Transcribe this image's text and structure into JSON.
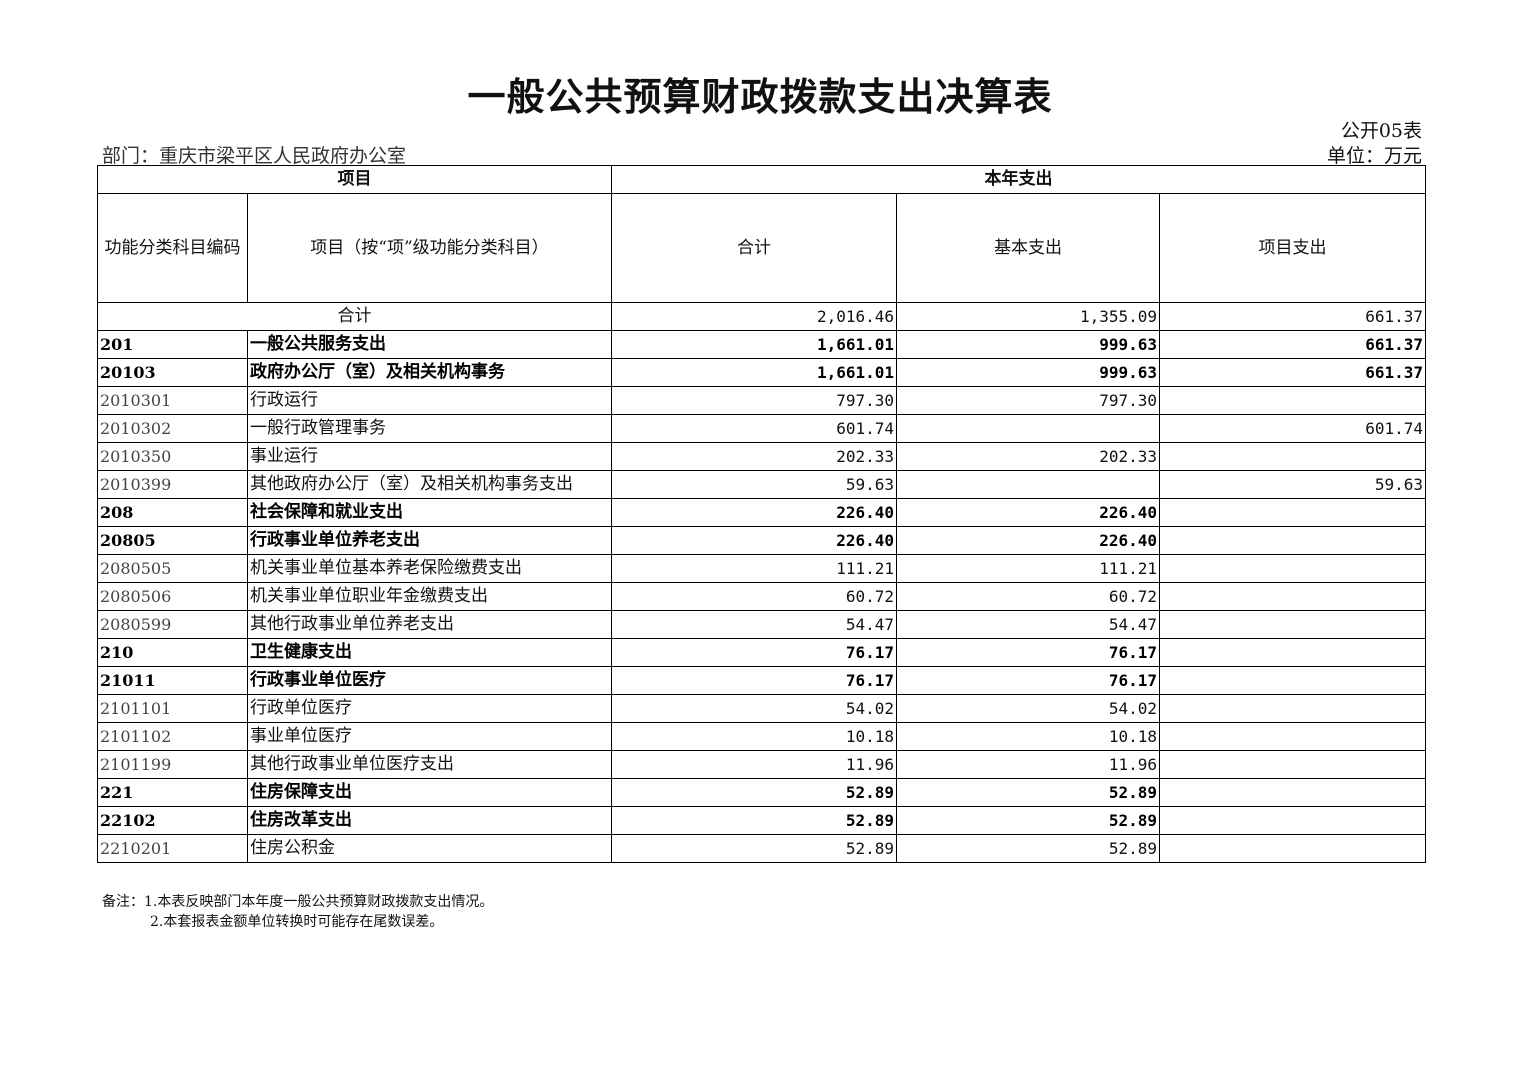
{
  "title": "一般公共预算财政拨款支出决算表",
  "form_no": "公开05表",
  "department": "部门：重庆市梁平区人民政府办公室",
  "unit": "单位：万元",
  "headers": {
    "project": "项目",
    "current_year": "本年支出",
    "code": "功能分类科目编码",
    "item": "项目（按“项”级功能分类科目）",
    "total": "合计",
    "basic": "基本支出",
    "project_exp": "项目支出"
  },
  "total_row": {
    "label": "合计",
    "total": "2,016.46",
    "basic": "1,355.09",
    "project": "661.37"
  },
  "rows": [
    {
      "code": "201",
      "name": "一般公共服务支出",
      "total": "1,661.01",
      "basic": "999.63",
      "project": "661.37",
      "bold": true
    },
    {
      "code": "20103",
      "name": "政府办公厅（室）及相关机构事务",
      "total": "1,661.01",
      "basic": "999.63",
      "project": "661.37",
      "bold": true
    },
    {
      "code": "2010301",
      "name": "行政运行",
      "total": "797.30",
      "basic": "797.30",
      "project": ""
    },
    {
      "code": "2010302",
      "name": "一般行政管理事务",
      "total": "601.74",
      "basic": "",
      "project": "601.74"
    },
    {
      "code": "2010350",
      "name": "事业运行",
      "total": "202.33",
      "basic": "202.33",
      "project": ""
    },
    {
      "code": "2010399",
      "name": "其他政府办公厅（室）及相关机构事务支出",
      "total": "59.63",
      "basic": "",
      "project": "59.63"
    },
    {
      "code": "208",
      "name": "社会保障和就业支出",
      "total": "226.40",
      "basic": "226.40",
      "project": "",
      "bold": true
    },
    {
      "code": "20805",
      "name": "行政事业单位养老支出",
      "total": "226.40",
      "basic": "226.40",
      "project": "",
      "bold": true
    },
    {
      "code": "2080505",
      "name": "机关事业单位基本养老保险缴费支出",
      "total": "111.21",
      "basic": "111.21",
      "project": ""
    },
    {
      "code": "2080506",
      "name": "机关事业单位职业年金缴费支出",
      "total": "60.72",
      "basic": "60.72",
      "project": ""
    },
    {
      "code": "2080599",
      "name": "其他行政事业单位养老支出",
      "total": "54.47",
      "basic": "54.47",
      "project": ""
    },
    {
      "code": "210",
      "name": "卫生健康支出",
      "total": "76.17",
      "basic": "76.17",
      "project": "",
      "bold": true
    },
    {
      "code": "21011",
      "name": "行政事业单位医疗",
      "total": "76.17",
      "basic": "76.17",
      "project": "",
      "bold": true
    },
    {
      "code": "2101101",
      "name": "行政单位医疗",
      "total": "54.02",
      "basic": "54.02",
      "project": ""
    },
    {
      "code": "2101102",
      "name": "事业单位医疗",
      "total": "10.18",
      "basic": "10.18",
      "project": ""
    },
    {
      "code": "2101199",
      "name": "其他行政事业单位医疗支出",
      "total": "11.96",
      "basic": "11.96",
      "project": ""
    },
    {
      "code": "221",
      "name": "住房保障支出",
      "total": "52.89",
      "basic": "52.89",
      "project": "",
      "bold": true
    },
    {
      "code": "22102",
      "name": "住房改革支出",
      "total": "52.89",
      "basic": "52.89",
      "project": "",
      "bold": true
    },
    {
      "code": "2210201",
      "name": "住房公积金",
      "total": "52.89",
      "basic": "52.89",
      "project": ""
    }
  ],
  "notes": [
    "备注：1.本表反映部门本年度一般公共预算财政拨款支出情况。",
    "2.本套报表金额单位转换时可能存在尾数误差。"
  ]
}
